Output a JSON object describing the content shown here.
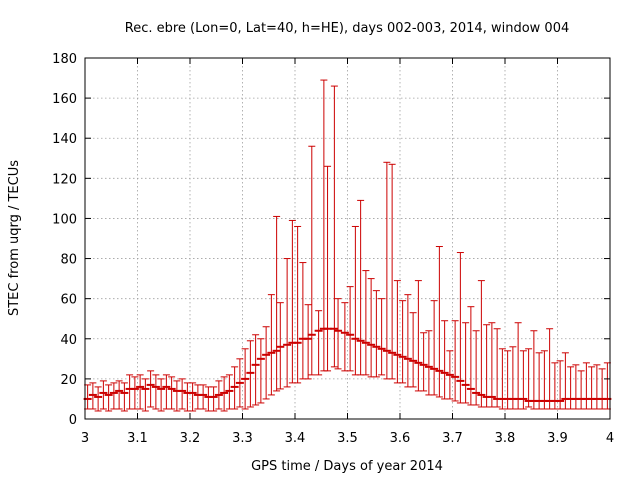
{
  "chart_data": {
    "type": "scatter",
    "style": "vertical error bars with horizontal tick marks",
    "title": "Rec. ebre (Lon=0, Lat=40, h=HE), days 002-003, 2014, window 004",
    "xlabel": "GPS time / Days of year 2014",
    "ylabel": "STEC from uqrg / TECUs",
    "xlim": [
      3.0,
      4.0
    ],
    "ylim": [
      0,
      180
    ],
    "xticks": [
      3.0,
      3.1,
      3.2,
      3.3,
      3.4,
      3.5,
      3.6,
      3.7,
      3.8,
      3.9,
      4.0
    ],
    "xtick_labels": [
      "3",
      "3.1",
      "3.2",
      "3.3",
      "3.4",
      "3.5",
      "3.6",
      "3.7",
      "3.8",
      "3.9",
      "4"
    ],
    "yticks": [
      0,
      20,
      40,
      60,
      80,
      100,
      120,
      140,
      160,
      180
    ],
    "ytick_labels": [
      "0",
      "20",
      "40",
      "60",
      "80",
      "100",
      "120",
      "140",
      "160",
      "180"
    ],
    "grid": true,
    "series_color": "#cc0000",
    "grid_color": "#a0a0a0",
    "series": [
      {
        "name": "STEC",
        "x": [
          3.005,
          3.015,
          3.025,
          3.035,
          3.045,
          3.055,
          3.065,
          3.075,
          3.085,
          3.095,
          3.105,
          3.115,
          3.125,
          3.135,
          3.145,
          3.155,
          3.165,
          3.175,
          3.185,
          3.195,
          3.205,
          3.215,
          3.225,
          3.235,
          3.245,
          3.255,
          3.265,
          3.275,
          3.285,
          3.295,
          3.305,
          3.315,
          3.325,
          3.335,
          3.345,
          3.355,
          3.365,
          3.372,
          3.385,
          3.395,
          3.405,
          3.415,
          3.425,
          3.432,
          3.445,
          3.455,
          3.462,
          3.475,
          3.482,
          3.495,
          3.505,
          3.515,
          3.525,
          3.535,
          3.545,
          3.555,
          3.565,
          3.575,
          3.585,
          3.595,
          3.605,
          3.615,
          3.625,
          3.635,
          3.645,
          3.655,
          3.665,
          3.675,
          3.685,
          3.695,
          3.705,
          3.715,
          3.725,
          3.735,
          3.745,
          3.755,
          3.765,
          3.775,
          3.785,
          3.795,
          3.805,
          3.815,
          3.825,
          3.835,
          3.845,
          3.855,
          3.865,
          3.875,
          3.885,
          3.895,
          3.905,
          3.915,
          3.925,
          3.935,
          3.945,
          3.955,
          3.965,
          3.975,
          3.985,
          3.995
        ],
        "low": [
          5,
          5,
          4,
          5,
          4,
          5,
          5,
          4,
          5,
          5,
          5,
          4,
          6,
          5,
          4,
          5,
          5,
          4,
          5,
          4,
          4,
          5,
          5,
          4,
          4,
          5,
          4,
          5,
          5,
          6,
          5,
          6,
          7,
          8,
          10,
          12,
          14,
          15,
          16,
          18,
          18,
          20,
          20,
          22,
          22,
          24,
          24,
          26,
          25,
          24,
          24,
          22,
          22,
          22,
          21,
          21,
          22,
          20,
          20,
          18,
          18,
          16,
          16,
          14,
          14,
          12,
          12,
          11,
          10,
          10,
          9,
          8,
          8,
          7,
          7,
          6,
          6,
          6,
          6,
          5,
          5,
          5,
          5,
          5,
          6,
          5,
          5,
          5,
          5,
          5,
          5,
          5,
          5,
          5,
          5,
          5,
          5,
          5,
          5,
          5
        ],
        "y": [
          10,
          12,
          11,
          13,
          12,
          13,
          14,
          13,
          15,
          15,
          16,
          15,
          17,
          16,
          15,
          16,
          15,
          14,
          14,
          13,
          13,
          12,
          12,
          11,
          11,
          12,
          13,
          14,
          16,
          18,
          20,
          23,
          27,
          30,
          32,
          33,
          34,
          36,
          37,
          38,
          38,
          40,
          40,
          42,
          44,
          45,
          45,
          45,
          44,
          43,
          42,
          40,
          39,
          38,
          37,
          36,
          35,
          34,
          33,
          32,
          31,
          30,
          29,
          28,
          27,
          26,
          25,
          24,
          23,
          22,
          21,
          19,
          17,
          15,
          13,
          12,
          11,
          11,
          10,
          10,
          10,
          10,
          10,
          10,
          9,
          9,
          9,
          9,
          9,
          9,
          9,
          10,
          10,
          10,
          10,
          10,
          10,
          10,
          10,
          10
        ],
        "high": [
          17,
          18,
          16,
          19,
          17,
          18,
          19,
          18,
          22,
          21,
          22,
          20,
          24,
          22,
          20,
          22,
          21,
          19,
          20,
          18,
          18,
          17,
          17,
          16,
          16,
          19,
          21,
          22,
          26,
          30,
          35,
          39,
          42,
          40,
          46,
          62,
          101,
          58,
          80,
          99,
          96,
          78,
          57,
          136,
          54,
          169,
          126,
          166,
          60,
          58,
          66,
          96,
          109,
          74,
          70,
          64,
          60,
          128,
          127,
          69,
          59,
          62,
          53,
          69,
          43,
          44,
          59,
          86,
          49,
          34,
          49,
          83,
          48,
          56,
          44,
          69,
          47,
          48,
          45,
          35,
          34,
          36,
          48,
          34,
          35,
          44,
          33,
          34,
          45,
          28,
          29,
          33,
          26,
          27,
          24,
          28,
          26,
          27,
          25,
          28
        ]
      }
    ]
  }
}
